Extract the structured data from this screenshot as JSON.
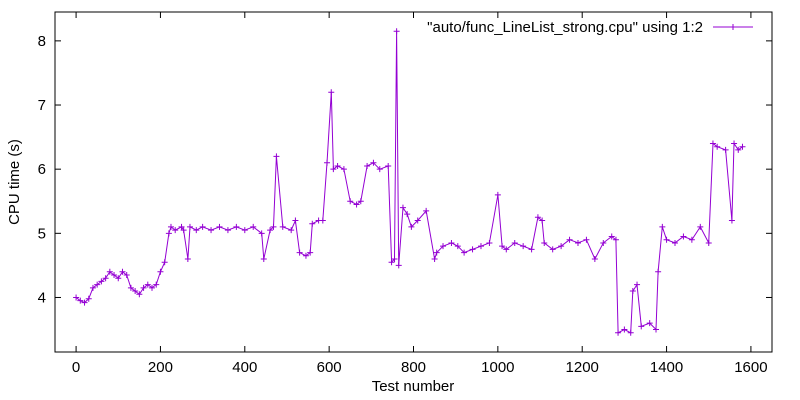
{
  "chart_data": {
    "type": "line",
    "xlabel": "Test number",
    "ylabel": "CPU time (s)",
    "xlim": [
      -50,
      1650
    ],
    "ylim": [
      3.15,
      8.45
    ],
    "xticks": [
      0,
      200,
      400,
      600,
      800,
      1000,
      1200,
      1400,
      1600
    ],
    "yticks": [
      4,
      5,
      6,
      7,
      8
    ],
    "xtick_labels": [
      "0",
      "200",
      "400",
      "600",
      "800",
      "1000",
      "1200",
      "1400",
      "1600"
    ],
    "ytick_labels": [
      "4",
      "5",
      "6",
      "7",
      "8"
    ],
    "grid": false,
    "legend_position": "top-right",
    "line_color": "#9400d3",
    "marker": "plus",
    "series": [
      {
        "name": "\"auto/func_LineList_strong.cpu\" using 1:2",
        "x": [
          0,
          10,
          20,
          30,
          40,
          50,
          60,
          70,
          80,
          90,
          100,
          110,
          120,
          130,
          140,
          150,
          160,
          170,
          180,
          190,
          200,
          210,
          220,
          225,
          235,
          250,
          255,
          265,
          270,
          285,
          300,
          320,
          340,
          360,
          380,
          400,
          420,
          440,
          445,
          460,
          468,
          475,
          490,
          510,
          520,
          530,
          545,
          555,
          560,
          575,
          585,
          595,
          605,
          610,
          620,
          635,
          650,
          665,
          675,
          690,
          705,
          720,
          740,
          748,
          755,
          760,
          765,
          775,
          785,
          795,
          810,
          830,
          850,
          855,
          870,
          890,
          905,
          920,
          940,
          960,
          980,
          1000,
          1010,
          1020,
          1040,
          1060,
          1080,
          1095,
          1105,
          1110,
          1130,
          1150,
          1170,
          1190,
          1210,
          1230,
          1250,
          1270,
          1280,
          1285,
          1300,
          1315,
          1320,
          1330,
          1340,
          1360,
          1375,
          1380,
          1390,
          1400,
          1420,
          1440,
          1460,
          1480,
          1500,
          1510,
          1520,
          1540,
          1555,
          1560,
          1570,
          1580
        ],
        "y": [
          4.0,
          3.95,
          3.92,
          3.98,
          4.15,
          4.2,
          4.25,
          4.3,
          4.4,
          4.35,
          4.3,
          4.4,
          4.35,
          4.15,
          4.1,
          4.05,
          4.15,
          4.2,
          4.15,
          4.2,
          4.4,
          4.55,
          5.0,
          5.1,
          5.05,
          5.1,
          5.05,
          4.6,
          5.1,
          5.05,
          5.1,
          5.05,
          5.1,
          5.05,
          5.1,
          5.05,
          5.1,
          5.0,
          4.6,
          5.05,
          5.1,
          6.2,
          5.1,
          5.05,
          5.2,
          4.7,
          4.65,
          4.7,
          5.15,
          5.2,
          5.2,
          6.1,
          7.2,
          6.0,
          6.05,
          6.0,
          5.5,
          5.45,
          5.5,
          6.05,
          6.1,
          6.0,
          6.05,
          4.55,
          4.6,
          8.15,
          4.5,
          5.4,
          5.3,
          5.1,
          5.2,
          5.35,
          4.6,
          4.7,
          4.8,
          4.85,
          4.8,
          4.7,
          4.75,
          4.8,
          4.85,
          5.6,
          4.8,
          4.75,
          4.85,
          4.8,
          4.75,
          5.25,
          5.2,
          4.85,
          4.75,
          4.8,
          4.9,
          4.85,
          4.9,
          4.6,
          4.85,
          4.95,
          4.9,
          3.45,
          3.5,
          3.45,
          4.1,
          4.2,
          3.55,
          3.6,
          3.5,
          4.4,
          5.1,
          4.9,
          4.85,
          4.95,
          4.9,
          5.1,
          4.85,
          6.4,
          6.35,
          6.3,
          5.2,
          6.4,
          6.3,
          6.35
        ]
      }
    ]
  }
}
